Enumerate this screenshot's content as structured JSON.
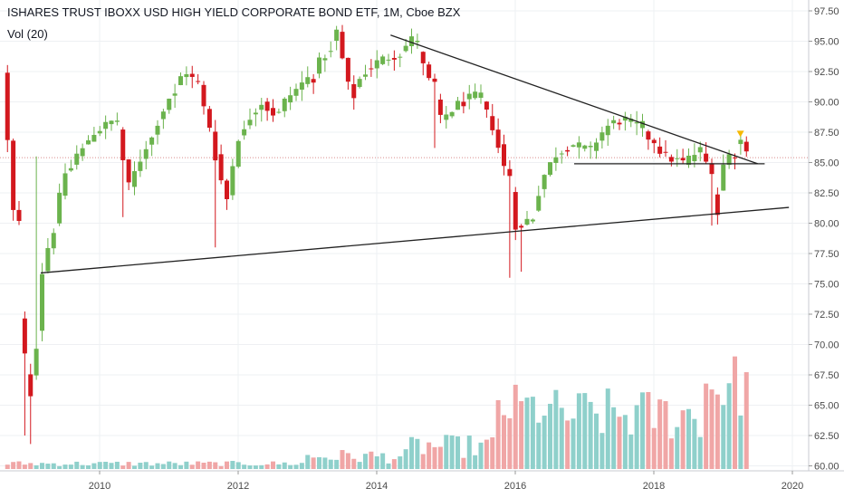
{
  "header": {
    "title": "ISHARES TRUST IBOXX USD HIGH YIELD CORPORATE BOND ETF, 1M, Cboe BZX",
    "volume_label": "Vol (20)"
  },
  "colors": {
    "up": "#6bb34d",
    "down": "#d3181e",
    "vol_up": "#8fd0cb",
    "vol_down": "#f0a6a6",
    "trendline": "#222222",
    "grid": "#eef0f3",
    "marker": "#f5b800"
  },
  "chart_data": {
    "type": "candlestick",
    "title": "ISHARES TRUST IBOXX USD HIGH YIELD CORPORATE BOND ETF, 1M, Cboe BZX",
    "interval": "1M",
    "y_axis": {
      "position": "right",
      "ylim": [
        59.5,
        98.5
      ],
      "ticks": [
        "97.50",
        "95.00",
        "92.50",
        "90.00",
        "87.50",
        "85.00",
        "82.50",
        "80.00",
        "77.50",
        "75.00",
        "72.50",
        "70.00",
        "67.50",
        "65.00",
        "62.50",
        "60.00"
      ]
    },
    "x_axis": {
      "xlim": [
        2008.6,
        2020.2
      ],
      "ticks": [
        {
          "v": 2010,
          "label": "2010"
        },
        {
          "v": 2012,
          "label": "2012"
        },
        {
          "v": 2014,
          "label": "2014"
        },
        {
          "v": 2016,
          "label": "2016"
        },
        {
          "v": 2018,
          "label": "2018"
        },
        {
          "v": 2020,
          "label": "2020"
        }
      ]
    },
    "grid": true,
    "reference_price": 85.4,
    "anchors": [
      [
        2008.67,
        92.5,
        80.0
      ],
      [
        2008.85,
        80.0,
        69.0
      ],
      [
        2008.95,
        69.0,
        66.0
      ],
      [
        2009.05,
        66.0,
        70.0
      ],
      [
        2009.15,
        70.0,
        76.0
      ],
      [
        2009.25,
        76.0,
        79.5
      ],
      [
        2009.4,
        79.5,
        84.5
      ],
      [
        2009.6,
        84.5,
        86.0
      ],
      [
        2009.8,
        86.0,
        87.5
      ],
      [
        2010.0,
        87.5,
        88.5
      ],
      [
        2010.3,
        88.5,
        83.0
      ],
      [
        2010.5,
        83.0,
        87.0
      ],
      [
        2010.8,
        87.0,
        90.5
      ],
      [
        2011.1,
        90.5,
        92.5
      ],
      [
        2011.3,
        92.5,
        91.5
      ],
      [
        2011.5,
        91.5,
        88.0
      ],
      [
        2011.65,
        88.0,
        82.0
      ],
      [
        2011.9,
        82.0,
        87.5
      ],
      [
        2012.1,
        87.5,
        90.0
      ],
      [
        2012.4,
        90.0,
        89.0
      ],
      [
        2012.6,
        89.0,
        91.0
      ],
      [
        2012.9,
        91.0,
        92.0
      ],
      [
        2013.1,
        92.0,
        94.0
      ],
      [
        2013.35,
        94.0,
        95.8
      ],
      [
        2013.5,
        95.8,
        90.5
      ],
      [
        2013.7,
        90.5,
        92.5
      ],
      [
        2013.9,
        92.5,
        93.5
      ],
      [
        2014.15,
        93.5,
        94.0
      ],
      [
        2014.4,
        94.0,
        95.2
      ],
      [
        2014.6,
        95.2,
        91.5
      ],
      [
        2014.85,
        91.5,
        88.5
      ],
      [
        2015.0,
        88.5,
        90.0
      ],
      [
        2015.3,
        90.0,
        90.5
      ],
      [
        2015.55,
        90.5,
        88.0
      ],
      [
        2015.75,
        88.0,
        84.0
      ],
      [
        2015.95,
        84.0,
        79.5
      ],
      [
        2016.1,
        79.5,
        80.5
      ],
      [
        2016.3,
        80.5,
        84.0
      ],
      [
        2016.5,
        84.0,
        86.0
      ],
      [
        2016.7,
        86.0,
        86.5
      ],
      [
        2016.9,
        86.5,
        86.0
      ],
      [
        2017.15,
        86.0,
        88.0
      ],
      [
        2017.4,
        88.0,
        88.5
      ],
      [
        2017.6,
        88.5,
        88.0
      ],
      [
        2017.85,
        88.0,
        86.8
      ],
      [
        2018.05,
        86.8,
        85.5
      ],
      [
        2018.25,
        85.5,
        85.0
      ],
      [
        2018.5,
        85.0,
        86.0
      ],
      [
        2018.75,
        86.0,
        84.5
      ],
      [
        2018.88,
        84.5,
        80.8
      ],
      [
        2018.95,
        80.8,
        84.8
      ],
      [
        2019.05,
        84.8,
        85.8
      ],
      [
        2019.2,
        85.8,
        86.8
      ],
      [
        2019.3,
        86.8,
        86.3
      ],
      [
        2019.38,
        86.3,
        85.2
      ]
    ],
    "annotations": [
      {
        "type": "trendline",
        "from": [
          2009.15,
          75.9
        ],
        "to": [
          2019.95,
          81.3
        ]
      },
      {
        "type": "trendline",
        "from": [
          2014.2,
          95.5
        ],
        "to": [
          2019.5,
          84.9
        ]
      },
      {
        "type": "horizontal_line",
        "from": [
          2016.85,
          84.9
        ],
        "to": [
          2019.6,
          84.9
        ]
      },
      {
        "type": "marker",
        "shape": "triangle-down",
        "at": [
          2019.25,
          87.4
        ]
      }
    ]
  }
}
